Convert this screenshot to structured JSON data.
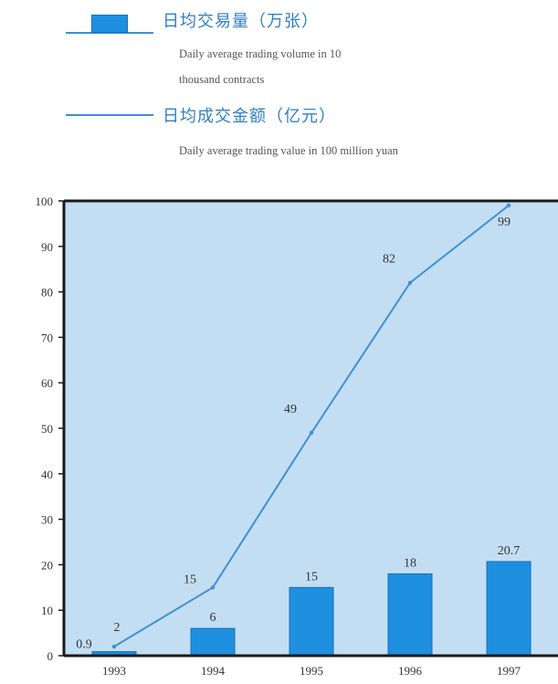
{
  "legend": {
    "bar_cn": "日均交易量（万张）",
    "bar_en_line1": "Daily average trading volume in 10",
    "bar_en_line2": "thousand contracts",
    "line_cn": "日均成交金额（亿元）",
    "line_en": "Daily average trading value in 100 million yuan"
  },
  "chart_data": {
    "type": "bar",
    "categories": [
      "1993",
      "1994",
      "1995",
      "1996",
      "1997"
    ],
    "series": [
      {
        "type": "bar",
        "name": "日均交易量（万张） Daily average trading volume in 10 thousand contracts",
        "values": [
          0.9,
          6,
          15,
          18,
          20.7
        ],
        "labels": [
          "0.9",
          "6",
          "15",
          "18",
          "20.7"
        ],
        "color": "#1f8fe0"
      },
      {
        "type": "line",
        "name": "日均成交金额（亿元） Daily average trading value in 100 million yuan",
        "values": [
          2,
          15,
          49,
          82,
          99
        ],
        "labels": [
          "2",
          "15",
          "49",
          "82",
          "99"
        ],
        "color": "#3f8fd6"
      }
    ],
    "yticks": [
      "0",
      "10",
      "20",
      "30",
      "40",
      "50",
      "60",
      "70",
      "80",
      "90",
      "100"
    ],
    "ylim": [
      0,
      100
    ],
    "grid": false,
    "legend_position": "top",
    "plot_background": "#c3def3"
  }
}
